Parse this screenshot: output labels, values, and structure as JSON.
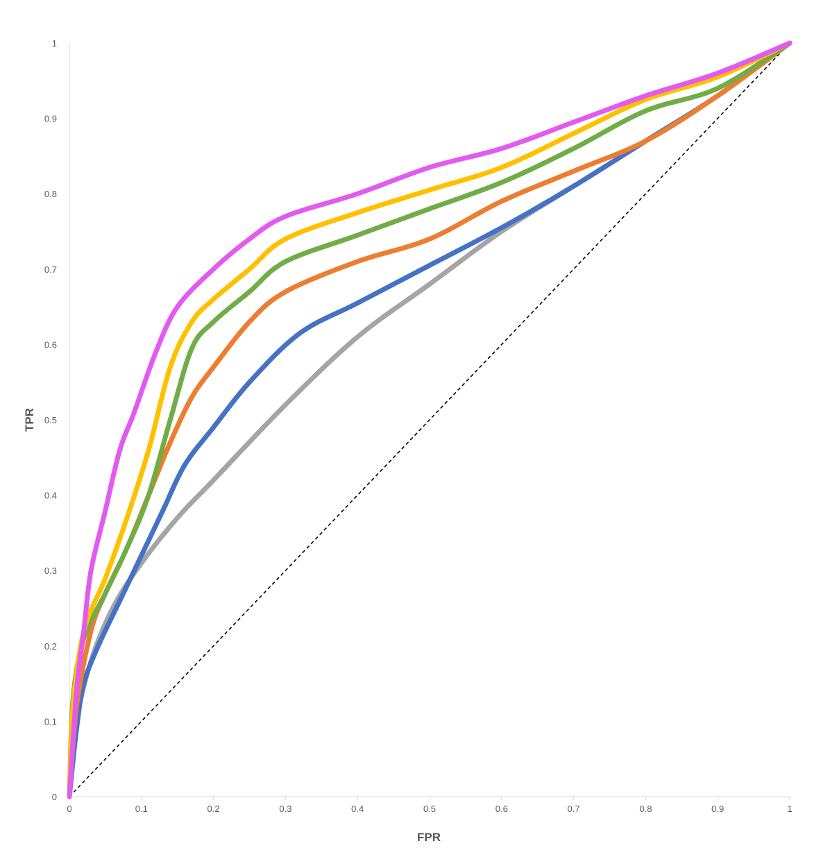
{
  "chart_data": {
    "type": "line",
    "title": "",
    "xlabel": "FPR",
    "ylabel": "TPR",
    "xlim": [
      0,
      1
    ],
    "ylim": [
      0,
      1
    ],
    "x_ticks": [
      "0",
      "0.1",
      "0.2",
      "0.3",
      "0.4",
      "0.5",
      "0.6",
      "0.7",
      "0.8",
      "0.9",
      "1"
    ],
    "y_ticks": [
      "0",
      "0.1",
      "0.2",
      "0.3",
      "0.4",
      "0.5",
      "0.6",
      "0.7",
      "0.8",
      "0.9",
      "1"
    ],
    "grid": false,
    "legend": "none",
    "series": [
      {
        "color": "#a5a5a5",
        "points": [
          [
            0,
            0
          ],
          [
            0.01,
            0.1
          ],
          [
            0.03,
            0.18
          ],
          [
            0.06,
            0.25
          ],
          [
            0.1,
            0.31
          ],
          [
            0.15,
            0.37
          ],
          [
            0.2,
            0.42
          ],
          [
            0.3,
            0.52
          ],
          [
            0.4,
            0.61
          ],
          [
            0.5,
            0.68
          ],
          [
            0.6,
            0.75
          ],
          [
            0.7,
            0.81
          ],
          [
            0.8,
            0.87
          ],
          [
            0.9,
            0.93
          ],
          [
            1,
            1
          ]
        ]
      },
      {
        "color": "#4472c4",
        "points": [
          [
            0,
            0
          ],
          [
            0.01,
            0.09
          ],
          [
            0.02,
            0.15
          ],
          [
            0.04,
            0.2
          ],
          [
            0.07,
            0.26
          ],
          [
            0.1,
            0.32
          ],
          [
            0.13,
            0.38
          ],
          [
            0.16,
            0.44
          ],
          [
            0.2,
            0.49
          ],
          [
            0.25,
            0.55
          ],
          [
            0.32,
            0.615
          ],
          [
            0.4,
            0.655
          ],
          [
            0.5,
            0.705
          ],
          [
            0.6,
            0.755
          ],
          [
            0.7,
            0.81
          ],
          [
            0.8,
            0.87
          ],
          [
            0.9,
            0.93
          ],
          [
            1,
            1
          ]
        ]
      },
      {
        "color": "#ed7d31",
        "points": [
          [
            0,
            0
          ],
          [
            0.01,
            0.12
          ],
          [
            0.03,
            0.22
          ],
          [
            0.05,
            0.27
          ],
          [
            0.08,
            0.33
          ],
          [
            0.11,
            0.4
          ],
          [
            0.14,
            0.47
          ],
          [
            0.17,
            0.53
          ],
          [
            0.2,
            0.57
          ],
          [
            0.25,
            0.63
          ],
          [
            0.3,
            0.67
          ],
          [
            0.4,
            0.71
          ],
          [
            0.5,
            0.74
          ],
          [
            0.6,
            0.79
          ],
          [
            0.7,
            0.83
          ],
          [
            0.8,
            0.87
          ],
          [
            0.9,
            0.93
          ],
          [
            1,
            1
          ]
        ]
      },
      {
        "color": "#70ad47",
        "points": [
          [
            0,
            0
          ],
          [
            0.005,
            0.13
          ],
          [
            0.02,
            0.21
          ],
          [
            0.05,
            0.27
          ],
          [
            0.08,
            0.33
          ],
          [
            0.11,
            0.4
          ],
          [
            0.14,
            0.5
          ],
          [
            0.17,
            0.595
          ],
          [
            0.2,
            0.63
          ],
          [
            0.25,
            0.67
          ],
          [
            0.3,
            0.71
          ],
          [
            0.4,
            0.745
          ],
          [
            0.5,
            0.78
          ],
          [
            0.6,
            0.815
          ],
          [
            0.7,
            0.86
          ],
          [
            0.8,
            0.91
          ],
          [
            0.9,
            0.94
          ],
          [
            1,
            1
          ]
        ]
      },
      {
        "color": "#ffc000",
        "points": [
          [
            0,
            0
          ],
          [
            0.005,
            0.12
          ],
          [
            0.02,
            0.22
          ],
          [
            0.05,
            0.29
          ],
          [
            0.08,
            0.37
          ],
          [
            0.11,
            0.46
          ],
          [
            0.14,
            0.57
          ],
          [
            0.17,
            0.63
          ],
          [
            0.2,
            0.66
          ],
          [
            0.25,
            0.7
          ],
          [
            0.3,
            0.74
          ],
          [
            0.4,
            0.775
          ],
          [
            0.5,
            0.805
          ],
          [
            0.6,
            0.835
          ],
          [
            0.7,
            0.88
          ],
          [
            0.8,
            0.925
          ],
          [
            0.9,
            0.955
          ],
          [
            1,
            1
          ]
        ]
      },
      {
        "color": "#e35af0",
        "points": [
          [
            0,
            0
          ],
          [
            0.01,
            0.14
          ],
          [
            0.02,
            0.22
          ],
          [
            0.03,
            0.3
          ],
          [
            0.05,
            0.38
          ],
          [
            0.07,
            0.46
          ],
          [
            0.09,
            0.51
          ],
          [
            0.12,
            0.59
          ],
          [
            0.15,
            0.65
          ],
          [
            0.2,
            0.7
          ],
          [
            0.25,
            0.74
          ],
          [
            0.3,
            0.77
          ],
          [
            0.4,
            0.8
          ],
          [
            0.5,
            0.835
          ],
          [
            0.6,
            0.86
          ],
          [
            0.7,
            0.895
          ],
          [
            0.8,
            0.93
          ],
          [
            0.9,
            0.96
          ],
          [
            1,
            1
          ]
        ]
      }
    ],
    "reference_line": {
      "color": "#000000",
      "style": "dashed",
      "points": [
        [
          0,
          0
        ],
        [
          1,
          1
        ]
      ]
    }
  }
}
